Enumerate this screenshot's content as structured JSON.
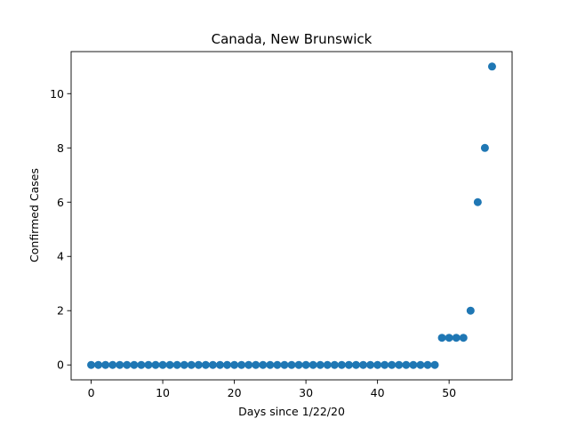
{
  "chart_data": {
    "type": "scatter",
    "title": "Canada, New Brunswick",
    "xlabel": "Days since 1/22/20",
    "ylabel": "Confirmed Cases",
    "xlim": [
      -2.8,
      58.8
    ],
    "ylim": [
      -0.55,
      11.55
    ],
    "xticks": [
      0,
      10,
      20,
      30,
      40,
      50
    ],
    "yticks": [
      0,
      2,
      4,
      6,
      8,
      10
    ],
    "grid": false,
    "marker_color": "#1f77b4",
    "x": [
      0,
      1,
      2,
      3,
      4,
      5,
      6,
      7,
      8,
      9,
      10,
      11,
      12,
      13,
      14,
      15,
      16,
      17,
      18,
      19,
      20,
      21,
      22,
      23,
      24,
      25,
      26,
      27,
      28,
      29,
      30,
      31,
      32,
      33,
      34,
      35,
      36,
      37,
      38,
      39,
      40,
      41,
      42,
      43,
      44,
      45,
      46,
      47,
      48,
      49,
      50,
      51,
      52,
      53,
      54,
      55,
      56
    ],
    "y": [
      0,
      0,
      0,
      0,
      0,
      0,
      0,
      0,
      0,
      0,
      0,
      0,
      0,
      0,
      0,
      0,
      0,
      0,
      0,
      0,
      0,
      0,
      0,
      0,
      0,
      0,
      0,
      0,
      0,
      0,
      0,
      0,
      0,
      0,
      0,
      0,
      0,
      0,
      0,
      0,
      0,
      0,
      0,
      0,
      0,
      0,
      0,
      0,
      0,
      1,
      1,
      1,
      1,
      2,
      6,
      8,
      11
    ]
  }
}
